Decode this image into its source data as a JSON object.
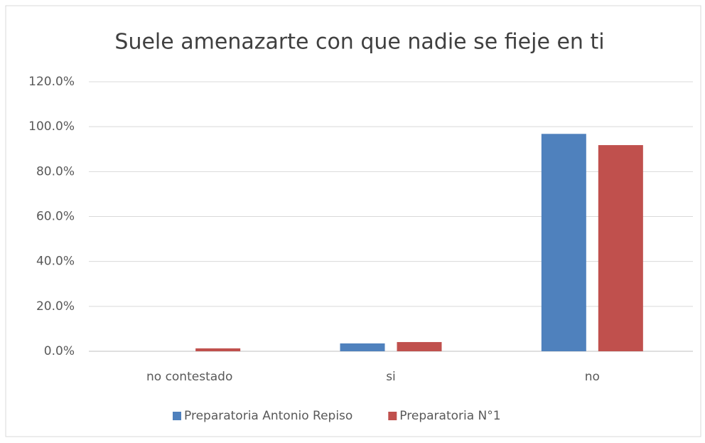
{
  "chart_data": {
    "type": "bar",
    "title": "Suele amenazarte con que nadie se fieje en ti",
    "categories": [
      "no contestado",
      "si",
      "no"
    ],
    "series": [
      {
        "name": "Preparatoria Antonio Repiso",
        "color": "#4f81bd",
        "values": [
          0,
          3.5,
          96.8
        ]
      },
      {
        "name": "Preparatoria N°1",
        "color": "#c0504d",
        "values": [
          1.3,
          4.1,
          91.8
        ]
      }
    ],
    "ylim": [
      0,
      120
    ],
    "yticks": [
      {
        "value": 0,
        "label": "0.0%"
      },
      {
        "value": 20,
        "label": "20.0%"
      },
      {
        "value": 40,
        "label": "40.0%"
      },
      {
        "value": 60,
        "label": "60.0%"
      },
      {
        "value": 80,
        "label": "80.0%"
      },
      {
        "value": 100,
        "label": "100.0%"
      },
      {
        "value": 120,
        "label": "120.0%"
      }
    ],
    "grid": true,
    "legend": "bottom"
  }
}
